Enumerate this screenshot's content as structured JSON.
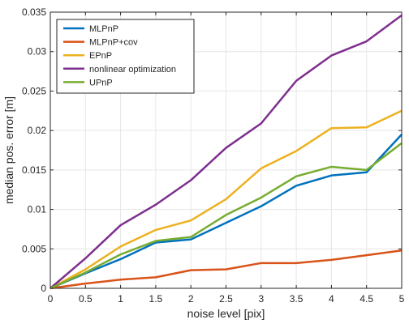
{
  "chart_data": {
    "type": "line",
    "xlabel": "noise level [pix]",
    "ylabel": "median pos. error [m]",
    "xlim": [
      0,
      5
    ],
    "ylim": [
      0,
      0.035
    ],
    "x_ticks": [
      "0",
      "0.5",
      "1",
      "1.5",
      "2",
      "2.5",
      "3",
      "3.5",
      "4",
      "4.5",
      "5"
    ],
    "y_ticks": [
      "0",
      "0.005",
      "0.01",
      "0.015",
      "0.02",
      "0.025",
      "0.03",
      "0.035"
    ],
    "grid": true,
    "legend_position": "top-left",
    "x": [
      0,
      0.5,
      1,
      1.5,
      2,
      2.5,
      3,
      3.5,
      4,
      4.5,
      5
    ],
    "series": [
      {
        "name": "MLPnP",
        "color": "#0072BD",
        "values": [
          0,
          0.0019,
          0.0037,
          0.0058,
          0.0062,
          0.0083,
          0.0104,
          0.013,
          0.0143,
          0.0147,
          0.0195
        ]
      },
      {
        "name": "MLPnP+cov",
        "color": "#D95319",
        "values": [
          0,
          0.0006,
          0.0011,
          0.0014,
          0.0023,
          0.0024,
          0.0032,
          0.0032,
          0.0036,
          0.0042,
          0.0048
        ]
      },
      {
        "name": "EPnP",
        "color": "#EDB120",
        "values": [
          0,
          0.0024,
          0.0053,
          0.0074,
          0.0086,
          0.0113,
          0.0152,
          0.0174,
          0.0203,
          0.0204,
          0.0225
        ]
      },
      {
        "name": "nonlinear optimization",
        "color": "#7E2F8E",
        "values": [
          0,
          0.0038,
          0.008,
          0.0106,
          0.0137,
          0.0178,
          0.0209,
          0.0263,
          0.0295,
          0.0313,
          0.0346
        ]
      },
      {
        "name": "UPnP",
        "color": "#77AC30",
        "values": [
          0,
          0.002,
          0.0043,
          0.006,
          0.0065,
          0.0093,
          0.0115,
          0.0142,
          0.0154,
          0.015,
          0.0184
        ]
      }
    ]
  }
}
